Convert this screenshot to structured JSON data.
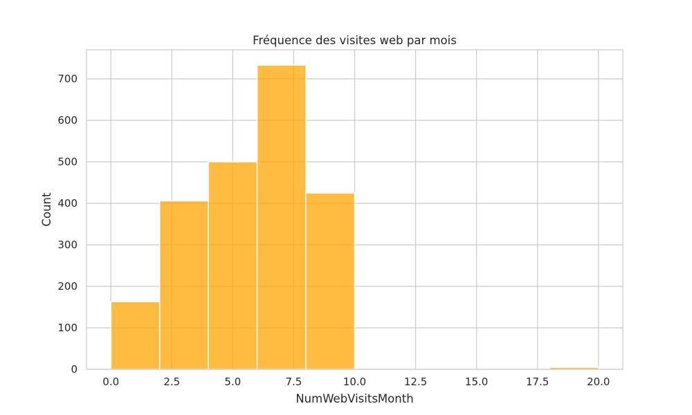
{
  "chart_data": {
    "type": "bar",
    "title": "Fréquence des visites web par mois",
    "xlabel": "NumWebVisitsMonth",
    "ylabel": "Count",
    "bins": [
      {
        "start": 0,
        "end": 2,
        "count": 163
      },
      {
        "start": 2,
        "end": 4,
        "count": 406
      },
      {
        "start": 4,
        "end": 6,
        "count": 500
      },
      {
        "start": 6,
        "end": 8,
        "count": 733
      },
      {
        "start": 8,
        "end": 10,
        "count": 425
      },
      {
        "start": 10,
        "end": 12,
        "count": 0
      },
      {
        "start": 12,
        "end": 14,
        "count": 0
      },
      {
        "start": 14,
        "end": 16,
        "count": 0
      },
      {
        "start": 16,
        "end": 18,
        "count": 0
      },
      {
        "start": 18,
        "end": 20,
        "count": 5
      }
    ],
    "xlim": [
      -1,
      21
    ],
    "ylim": [
      0,
      770
    ],
    "xticks": [
      0.0,
      2.5,
      5.0,
      7.5,
      10.0,
      12.5,
      15.0,
      17.5,
      20.0
    ],
    "xtick_labels": [
      "0.0",
      "2.5",
      "5.0",
      "7.5",
      "10.0",
      "12.5",
      "15.0",
      "17.5",
      "20.0"
    ],
    "yticks": [
      0,
      100,
      200,
      300,
      400,
      500,
      600,
      700
    ],
    "ytick_labels": [
      "0",
      "100",
      "200",
      "300",
      "400",
      "500",
      "600",
      "700"
    ],
    "grid": true,
    "bar_color": "#FFA500",
    "bar_opacity": 0.75
  }
}
